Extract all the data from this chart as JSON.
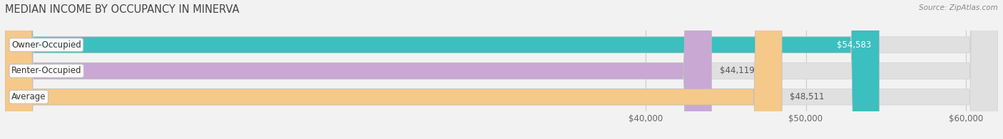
{
  "title": "MEDIAN INCOME BY OCCUPANCY IN MINERVA",
  "source": "Source: ZipAtlas.com",
  "categories": [
    "Owner-Occupied",
    "Renter-Occupied",
    "Average"
  ],
  "values": [
    54583,
    44119,
    48511
  ],
  "bar_colors": [
    "#3bbfbf",
    "#c9a8d4",
    "#f5c98a"
  ],
  "bar_labels": [
    "$54,583",
    "$44,119",
    "$48,511"
  ],
  "label_color_on_bar": [
    true,
    false,
    false
  ],
  "xlim": [
    0,
    62000
  ],
  "xticks": [
    40000,
    50000,
    60000
  ],
  "xtick_labels": [
    "$40,000",
    "$50,000",
    "$60,000"
  ],
  "background_color": "#f2f2f2",
  "bar_background_color": "#e0e0e0",
  "title_fontsize": 10.5,
  "label_fontsize": 8.5,
  "tick_fontsize": 8.5,
  "bar_height": 0.62,
  "figsize": [
    14.06,
    1.96
  ],
  "dpi": 100
}
